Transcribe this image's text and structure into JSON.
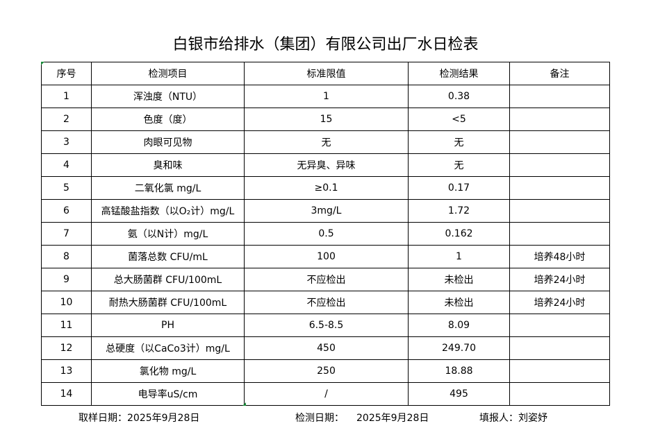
{
  "header": {
    "title": "白银市给排水（集团）有限公司出厂水日检表"
  },
  "table": {
    "columns": [
      "序号",
      "检测项目",
      "标准限值",
      "检测结果",
      "备注"
    ],
    "rows": [
      {
        "no": "1",
        "item": "浑浊度（NTU）",
        "standard": "1",
        "result": "0.38"
      },
      {
        "no": "2",
        "item": "色度（度）",
        "standard": "15",
        "result": "<5"
      },
      {
        "no": "3",
        "item": "肉眼可见物",
        "standard": "无",
        "result": "无"
      },
      {
        "no": "4",
        "item": "臭和味",
        "standard": "无异臭、异味",
        "result": "无"
      },
      {
        "no": "5",
        "item": "二氧化氯 mg/L",
        "standard": "≥0.1",
        "result": "0.17"
      },
      {
        "no": "6",
        "item": "高锰酸盐指数（以O₂计）mg/L",
        "standard": "3mg/L",
        "result": "1.72"
      },
      {
        "no": "7",
        "item": "氨（以N计）mg/L",
        "standard": "0.5",
        "result": "0.162"
      },
      {
        "no": "8",
        "item": "菌落总数 CFU/mL",
        "standard": "100",
        "result": "1",
        "remark": "培养48小时"
      },
      {
        "no": "9",
        "item": "总大肠菌群 CFU/100mL",
        "standard": "不应检出",
        "result": "未检出",
        "remark": "培养24小时"
      },
      {
        "no": "10",
        "item": "耐热大肠菌群 CFU/100mL",
        "standard": "不应检出",
        "result": "未检出",
        "remark": "培养24小时"
      },
      {
        "no": "11",
        "item": "PH",
        "standard": "6.5-8.5",
        "result": "8.09"
      },
      {
        "no": "12",
        "item": "总硬度（以CaCo3计）mg/L",
        "standard": "450",
        "result": "249.70"
      },
      {
        "no": "13",
        "item": "氯化物 mg/L",
        "standard": "250",
        "result": "18.88"
      },
      {
        "no": "14",
        "item": "电导率uS/cm",
        "standard": "/",
        "result": "495"
      }
    ]
  },
  "footer": {
    "sampling_label": "取样日期：",
    "sampling_date": "2025年9月28日",
    "testing_label": "检测日期：",
    "testing_date": "2025年9月28日",
    "reporter_label": "填报人：",
    "reporter": "刘姿妤"
  }
}
